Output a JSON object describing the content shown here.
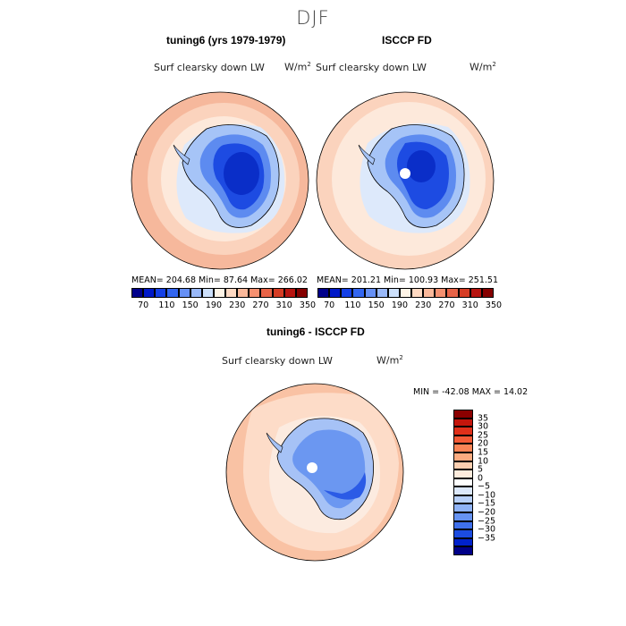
{
  "season_title": "DJF",
  "panels": [
    {
      "title": "tuning6 (yrs 1979-1979)",
      "variable": "Surf clearsky down LW",
      "units_base": "W/m",
      "units_exp": "2",
      "stats": "MEAN= 204.68   Min=  87.64   Max= 266.02"
    },
    {
      "title": "ISCCP FD",
      "variable": "Surf clearsky down LW",
      "units_base": "W/m",
      "units_exp": "2",
      "stats": "MEAN= 201.21   Min= 100.93   Max= 251.51"
    }
  ],
  "top_colorbar": {
    "colors": [
      "#00008b",
      "#0019c8",
      "#1540e6",
      "#3366f0",
      "#6690f5",
      "#99b8f8",
      "#cde0fb",
      "#fff4e6",
      "#ffd9c2",
      "#fbb89a",
      "#f59070",
      "#e86448",
      "#d63c24",
      "#b71410",
      "#850000"
    ],
    "tick_labels": [
      "70",
      "110",
      "150",
      "190",
      "230",
      "270",
      "310",
      "350"
    ]
  },
  "difference_panel": {
    "title": "tuning6 - ISCCP FD",
    "variable": "Surf clearsky down LW",
    "units_base": "W/m",
    "units_exp": "2",
    "stats": "MIN = -42.08  MAX =  14.02"
  },
  "diff_colorbar": {
    "colors_top_to_bottom": [
      "#8b0000",
      "#c4160c",
      "#e0301a",
      "#f45a36",
      "#fa8456",
      "#fcab80",
      "#fdcfb0",
      "#fdebdc",
      "#ffffff",
      "#dce8fb",
      "#b8d0fa",
      "#8fb3f6",
      "#6693f2",
      "#3f70ec",
      "#1c4ce0",
      "#0022cc",
      "#000088"
    ],
    "tick_labels": [
      "35",
      "30",
      "25",
      "20",
      "15",
      "10",
      "5",
      "0",
      "−5",
      "−10",
      "−15",
      "−20",
      "−25",
      "−30",
      "−35"
    ]
  },
  "map_colors": {
    "ocean_far": "#f6b89c",
    "ocean_mid": "#fbd3bd",
    "ocean_near": "#fde9db",
    "sea_ice": "#dde9fb",
    "coast_blue": "#a6c4f7",
    "inland_mid": "#5d8bf0",
    "interior": "#1d4be2",
    "deep_interior": "#0a2ec8",
    "diff_ocean": "#fddcc8",
    "diff_ocean_light": "#fcebe0",
    "diff_ant_light": "#a6c2f6",
    "diff_ant_mid": "#6b97f1",
    "diff_ant_dark": "#2b5be6"
  }
}
